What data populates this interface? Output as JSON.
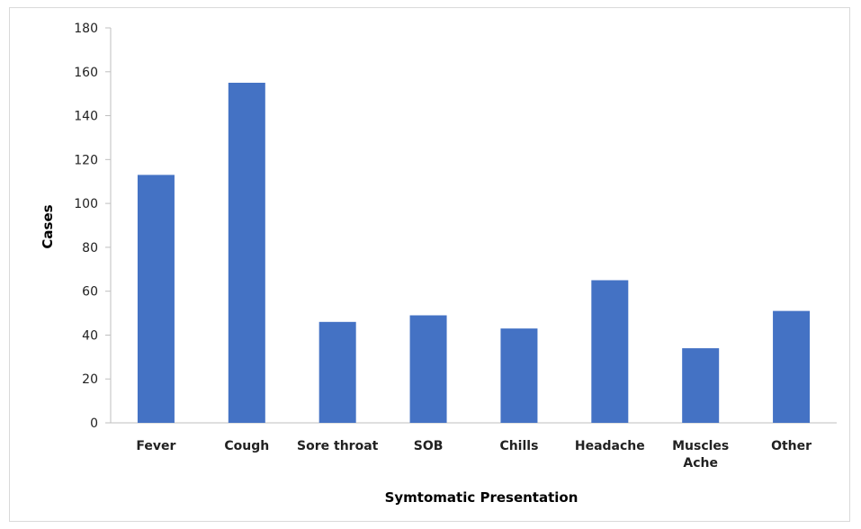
{
  "chart_data": {
    "type": "bar",
    "categories": [
      "Fever",
      "Cough",
      "Sore throat",
      "SOB",
      "Chills",
      "Headache",
      "Muscles Ache",
      "Other"
    ],
    "values": [
      113,
      155,
      46,
      49,
      43,
      65,
      34,
      51
    ],
    "xlabel": "Symtomatic Presentation",
    "ylabel": "Cases",
    "ylim": [
      0,
      180
    ],
    "yticks": [
      0,
      20,
      40,
      60,
      80,
      100,
      120,
      140,
      160,
      180
    ],
    "grid": false,
    "legend": "none",
    "bar_color": "#4472c4"
  }
}
